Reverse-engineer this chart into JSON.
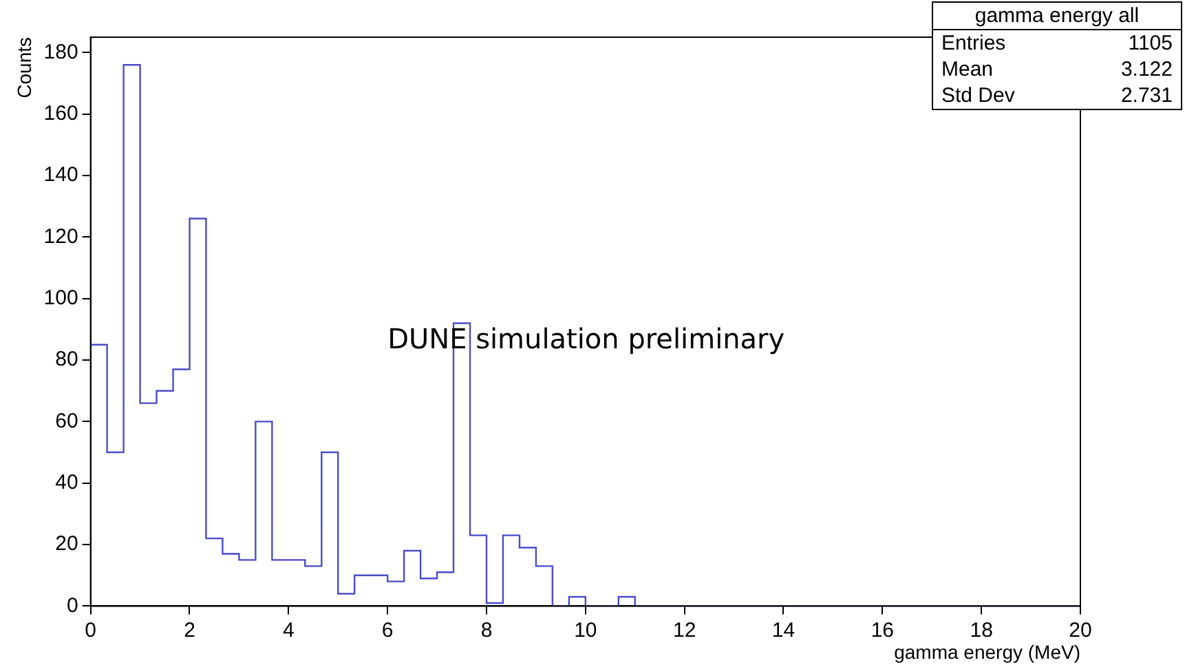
{
  "chart_data": {
    "type": "histogram",
    "xlabel": "gamma energy (MeV)",
    "ylabel": "Counts",
    "legend_title": "gamma energy all",
    "bins": [
      0,
      0.333,
      0.667,
      1,
      1.333,
      1.667,
      2,
      2.333,
      2.667,
      3,
      3.333,
      3.667,
      4,
      4.333,
      4.667,
      5,
      5.333,
      5.667,
      6,
      6.333,
      6.667,
      7,
      7.333,
      7.667,
      8,
      8.333,
      8.667,
      9,
      9.333,
      9.667,
      10,
      10.333,
      10.667,
      11,
      11.333,
      11.667,
      12,
      12.333,
      12.667,
      13,
      13.333,
      13.667,
      14,
      14.333,
      14.667,
      15,
      15.333,
      15.667,
      16,
      16.333,
      16.667,
      17,
      17.333,
      17.667,
      18,
      18.333,
      18.667,
      19,
      19.333,
      19.667,
      20
    ],
    "values": [
      85,
      50,
      176,
      66,
      70,
      77,
      126,
      22,
      17,
      15,
      60,
      15,
      15,
      13,
      50,
      4,
      10,
      10,
      8,
      18,
      9,
      11,
      92,
      23,
      1,
      23,
      19,
      13,
      0,
      3,
      0,
      0,
      3,
      0,
      0,
      0,
      0,
      0,
      0,
      0,
      0,
      0,
      0,
      0,
      0,
      0,
      0,
      0,
      0,
      0,
      0,
      0,
      0,
      0,
      0,
      0,
      0,
      0,
      0,
      0
    ],
    "color": "#4b4bc8",
    "xlim": [
      0,
      20
    ],
    "xticks": [
      0,
      2,
      4,
      6,
      8,
      10,
      12,
      14,
      16,
      18,
      20
    ],
    "ylim": [
      0,
      185
    ],
    "yticks": [
      0,
      20,
      40,
      60,
      80,
      100,
      120,
      140,
      160,
      180
    ],
    "grid": false,
    "annotations": [
      "Entries",
      "1105",
      "Mean",
      "3.122",
      "Std Dev",
      "2.731",
      "DUNE simulation preliminary"
    ]
  }
}
